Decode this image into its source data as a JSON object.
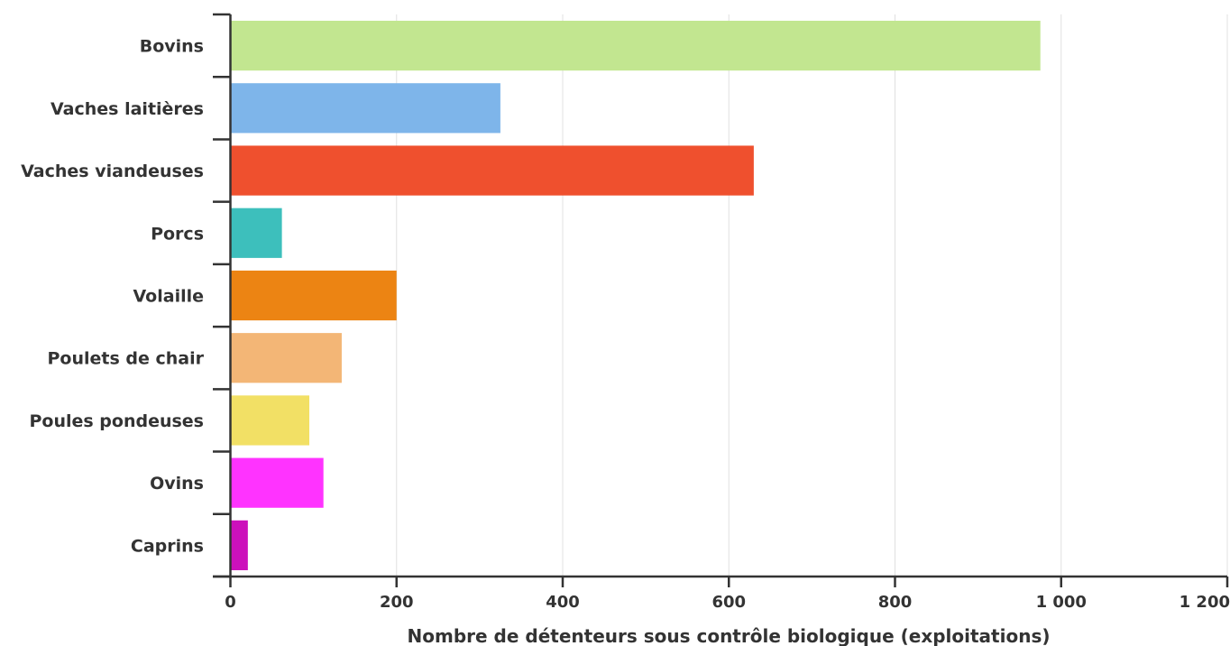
{
  "chart_data": {
    "type": "bar",
    "orientation": "horizontal",
    "categories": [
      "Bovins",
      "Vaches laitières",
      "Vaches viandeuses",
      "Porcs",
      "Volaille",
      "Poulets de chair",
      "Poules pondeuses",
      "Ovins",
      "Caprins"
    ],
    "values": [
      975,
      325,
      630,
      62,
      200,
      134,
      95,
      112,
      21
    ],
    "colors": [
      "#c2e690",
      "#7eb5ea",
      "#ef502e",
      "#3dbfbc",
      "#ec8413",
      "#f3b676",
      "#f2e065",
      "#ff33ff",
      "#cc11bb"
    ],
    "xlabel": "Nombre de détenteurs sous contrôle biologique (exploitations)",
    "ylabel": "",
    "xlim": [
      0,
      1200
    ],
    "xticks": [
      0,
      200,
      400,
      600,
      800,
      1000,
      1200
    ],
    "xtick_labels": [
      "0",
      "200",
      "400",
      "600",
      "800",
      "1 000",
      "1 200"
    ],
    "grid": "vertical",
    "legend": "none"
  }
}
